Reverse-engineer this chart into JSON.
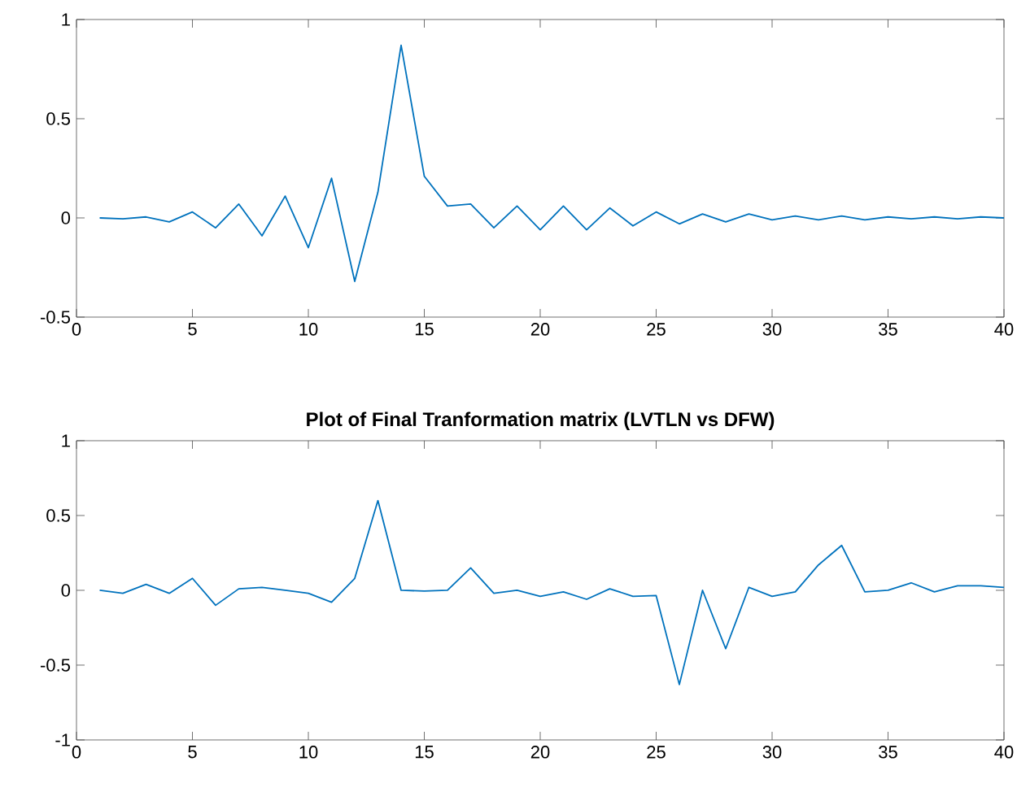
{
  "chart_data": [
    {
      "type": "line",
      "x": [
        1,
        2,
        3,
        4,
        5,
        6,
        7,
        8,
        9,
        10,
        11,
        12,
        13,
        14,
        15,
        16,
        17,
        18,
        19,
        20,
        21,
        22,
        23,
        24,
        25,
        26,
        27,
        28,
        29,
        30,
        31,
        32,
        33,
        34,
        35,
        36,
        37,
        38,
        39,
        40
      ],
      "series": [
        {
          "color": "#0072bd",
          "values": [
            0,
            -0.005,
            0.005,
            -0.02,
            0.03,
            -0.05,
            0.07,
            -0.09,
            0.11,
            -0.15,
            0.2,
            -0.32,
            0.13,
            0.87,
            0.21,
            0.06,
            0.07,
            -0.05,
            0.06,
            -0.06,
            0.06,
            -0.06,
            0.05,
            -0.04,
            0.03,
            -0.03,
            0.02,
            -0.02,
            0.02,
            -0.01,
            0.01,
            -0.01,
            0.01,
            -0.01,
            0.005,
            -0.005,
            0.005,
            -0.005,
            0.005,
            0
          ]
        }
      ],
      "xlim": [
        0,
        40
      ],
      "ylim": [
        -0.5,
        1
      ],
      "xticks": [
        0,
        5,
        10,
        15,
        20,
        25,
        30,
        35,
        40
      ],
      "yticks": [
        -0.5,
        0,
        0.5,
        1
      ]
    },
    {
      "type": "line",
      "title": "Plot of Final Tranformation matrix (LVTLN vs DFW)",
      "x": [
        1,
        2,
        3,
        4,
        5,
        6,
        7,
        8,
        9,
        10,
        11,
        12,
        13,
        14,
        15,
        16,
        17,
        18,
        19,
        20,
        21,
        22,
        23,
        24,
        25,
        26,
        27,
        28,
        29,
        30,
        31,
        32,
        33,
        34,
        35,
        36,
        37,
        38,
        39,
        40
      ],
      "series": [
        {
          "color": "#0072bd",
          "values": [
            0,
            -0.02,
            0.04,
            -0.02,
            0.08,
            -0.1,
            0.01,
            0.02,
            0,
            -0.02,
            -0.08,
            0.08,
            0.6,
            0,
            -0.005,
            0,
            0.15,
            -0.02,
            0,
            -0.04,
            -0.01,
            -0.06,
            0.01,
            -0.04,
            -0.035,
            -0.63,
            0,
            -0.39,
            0.02,
            -0.04,
            -0.01,
            0.17,
            0.3,
            -0.01,
            0,
            0.05,
            -0.01,
            0.03,
            0.03,
            0.02
          ]
        }
      ],
      "xlim": [
        0,
        40
      ],
      "ylim": [
        -1,
        1
      ],
      "xticks": [
        0,
        5,
        10,
        15,
        20,
        25,
        30,
        35,
        40
      ],
      "yticks": [
        -1,
        -0.5,
        0,
        0.5,
        1
      ]
    }
  ]
}
